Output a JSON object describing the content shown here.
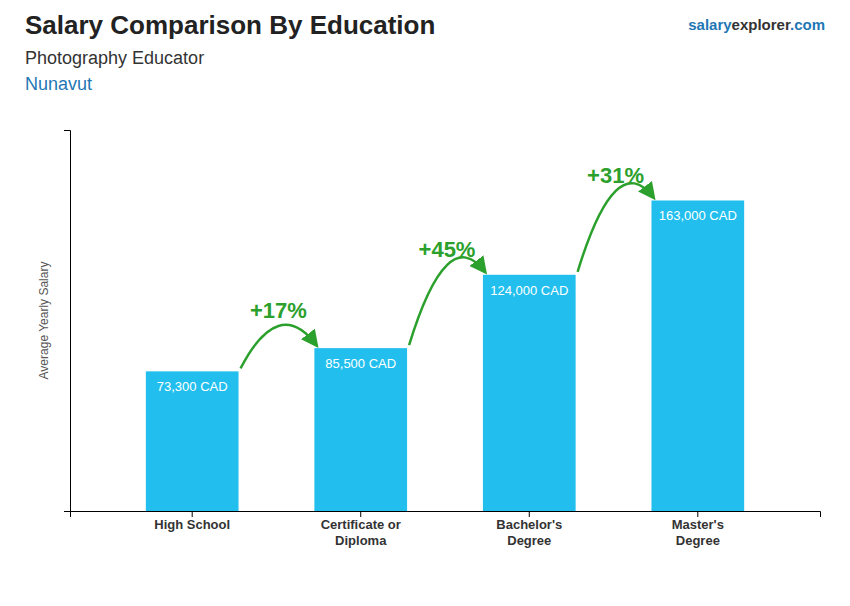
{
  "chart_data": {
    "type": "bar",
    "title": "Salary Comparison By Education",
    "subtitle": "Photography Educator",
    "region": "Nunavut",
    "brand": [
      "salary",
      "explorer",
      ".com"
    ],
    "ylabel": "Average Yearly Salary",
    "categories": [
      "High School",
      "Certificate or\nDiploma",
      "Bachelor's\nDegree",
      "Master's\nDegree"
    ],
    "values": [
      73300,
      85500,
      124000,
      163000
    ],
    "value_labels": [
      "73,300 CAD",
      "85,500 CAD",
      "124,000 CAD",
      "163,000 CAD"
    ],
    "data_labels": true,
    "annotations": [
      "+17%",
      "+45%",
      "+31%"
    ],
    "color": "#22bfee",
    "ylim": [
      0,
      200000
    ],
    "tick_labels": "x",
    "grid": false
  }
}
